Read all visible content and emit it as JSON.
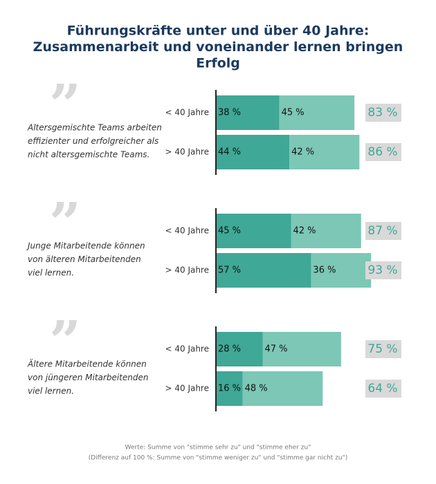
{
  "title": [
    "Führungskräfte unter und über 40 Jahre:",
    "Zusammenarbeit und voneinander lernen bringen",
    "Erfolg"
  ],
  "footnote": [
    "Werte:  Summe von \"stimme sehr zu\" und \"stimme eher zu\"",
    "(Differenz auf 100 %: Summe von \"stimme weniger zu\" und \"stimme gar nicht zu\")"
  ],
  "chart_data": [
    {
      "type": "bar",
      "quote": [
        "Altersgemischte Teams arbeiten",
        "effizienter und erfolgreicher als",
        "nicht altersgemischte Teams."
      ],
      "categories": [
        "< 40 Jahre",
        "> 40 Jahre"
      ],
      "xlim": [
        0,
        90
      ],
      "series": [
        {
          "color": "#3fa896",
          "values": [
            38,
            44
          ],
          "value_labels": [
            "38 %",
            "44 %"
          ]
        },
        {
          "color": "#7cc7b6",
          "values": [
            45,
            42
          ],
          "value_labels": [
            "45 %",
            "42 %"
          ]
        }
      ],
      "totals": [
        83,
        86
      ],
      "total_labels": [
        "83 %",
        "86 %"
      ]
    },
    {
      "type": "bar",
      "quote": [
        "Junge Mitarbeitende können",
        "von älteren Mitarbeitenden",
        "viel lernen."
      ],
      "categories": [
        "< 40 Jahre",
        "> 40 Jahre"
      ],
      "xlim": [
        0,
        90
      ],
      "series": [
        {
          "color": "#3fa896",
          "values": [
            45,
            57
          ],
          "value_labels": [
            "45 %",
            "57 %"
          ]
        },
        {
          "color": "#7cc7b6",
          "values": [
            42,
            36
          ],
          "value_labels": [
            "42 %",
            "36 %"
          ]
        }
      ],
      "totals": [
        87,
        93
      ],
      "total_labels": [
        "87 %",
        "93 %"
      ]
    },
    {
      "type": "bar",
      "quote": [
        "Ältere Mitarbeitende können",
        "von jüngeren Mitarbeitenden",
        "viel lernen."
      ],
      "categories": [
        "< 40 Jahre",
        "> 40 Jahre"
      ],
      "xlim": [
        0,
        90
      ],
      "series": [
        {
          "color": "#3fa896",
          "values": [
            28,
            16
          ],
          "value_labels": [
            "28 %",
            "16 %"
          ]
        },
        {
          "color": "#7cc7b6",
          "values": [
            47,
            48
          ],
          "value_labels": [
            "47 %",
            "48 %"
          ]
        }
      ],
      "totals": [
        75,
        64
      ],
      "total_labels": [
        "75 %",
        "64 %"
      ]
    }
  ]
}
